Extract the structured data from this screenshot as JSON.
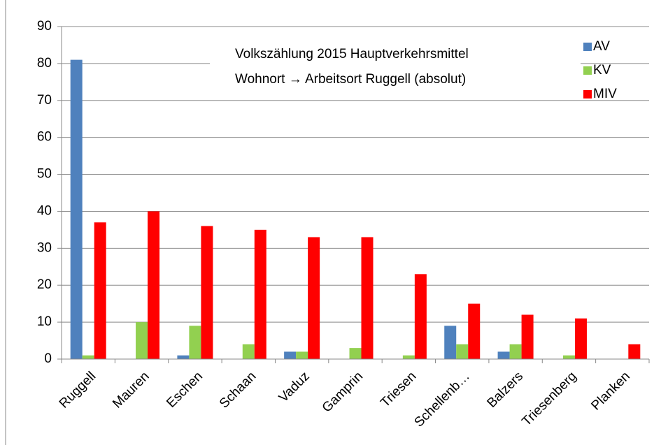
{
  "chart_data": {
    "type": "bar",
    "annotations": [
      "Volkszählung 2015  Hauptverkehrsmittel",
      "Wohnort → Arbeitsort Ruggell (absolut)"
    ],
    "categories": [
      "Ruggell",
      "Mauren",
      "Eschen",
      "Schaan",
      "Vaduz",
      "Gamprin",
      "Triesen",
      "Schellenb…",
      "Balzers",
      "Triesenberg",
      "Planken"
    ],
    "series": [
      {
        "name": "AV",
        "color": "#4f81bd",
        "values": [
          81,
          0,
          1,
          0,
          2,
          0,
          0,
          9,
          2,
          0,
          0
        ]
      },
      {
        "name": "KV",
        "color": "#92d050",
        "values": [
          1,
          10,
          9,
          4,
          2,
          3,
          1,
          4,
          4,
          1,
          0
        ]
      },
      {
        "name": "MIV",
        "color": "#ff0000",
        "values": [
          37,
          40,
          36,
          35,
          33,
          33,
          23,
          15,
          12,
          11,
          4
        ]
      }
    ],
    "ylim": [
      0,
      90
    ],
    "yticks": [
      0,
      10,
      20,
      30,
      40,
      50,
      60,
      70,
      80,
      90
    ],
    "grid": true,
    "legend": "top-right"
  }
}
